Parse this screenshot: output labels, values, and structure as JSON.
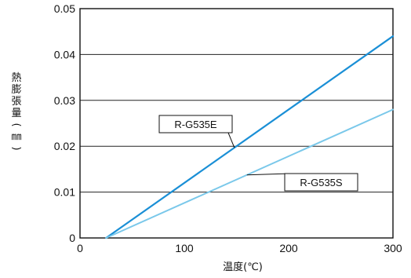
{
  "chart_data": {
    "type": "line",
    "title": "",
    "xlabel": "温度(℃)",
    "ylabel_chars": [
      "熱",
      "膨",
      "張",
      "量",
      "(",
      "㎜",
      ")"
    ],
    "xlim": [
      0,
      300
    ],
    "ylim": [
      0,
      0.05
    ],
    "x_ticks": [
      0,
      100,
      200,
      300
    ],
    "x_tick_labels": [
      "0",
      "100",
      "200",
      "300"
    ],
    "y_ticks": [
      0,
      0.01,
      0.02,
      0.03,
      0.04,
      0.05
    ],
    "y_tick_labels": [
      "0",
      "0.01",
      "0.02",
      "0.03",
      "0.04",
      "0.05"
    ],
    "grid": {
      "horizontal": true,
      "vertical": false
    },
    "series": [
      {
        "name": "R-G535E",
        "color": "#1a8fd6",
        "x": [
          25,
          300
        ],
        "y": [
          0,
          0.044
        ]
      },
      {
        "name": "R-G535S",
        "color": "#7ac8ea",
        "x": [
          25,
          300
        ],
        "y": [
          0,
          0.028
        ]
      }
    ]
  }
}
